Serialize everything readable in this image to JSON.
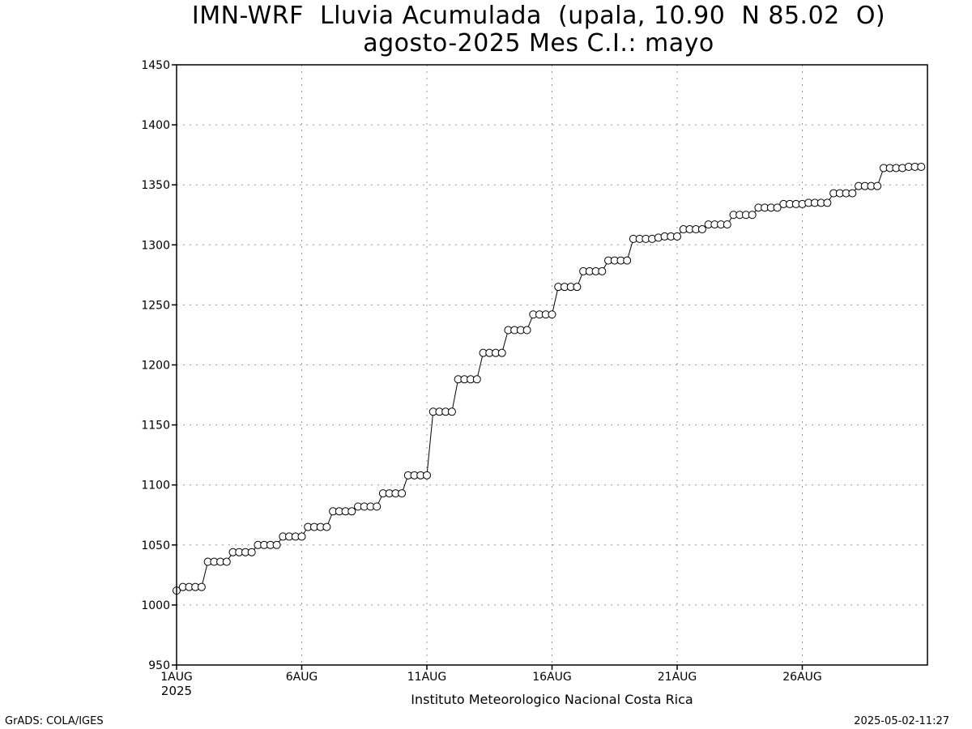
{
  "title_line1": "IMN-WRF  Lluvia Acumulada  (upala, 10.90  N 85.02  O)",
  "title_line2": "agosto-2025 Mes C.I.: mayo",
  "footer_left": "GrADS: COLA/IGES",
  "footer_right": "2025-05-02-11:27",
  "chart_data": {
    "type": "line",
    "title": "IMN-WRF  Lluvia Acumulada  (upala, 10.90  N 85.02  O)",
    "subtitle": "agosto-2025 Mes C.I.: mayo",
    "xlabel": "Instituto Meteorologico Nacional Costa Rica",
    "ylabel": "",
    "ylim": [
      950,
      1450
    ],
    "xlim": [
      0,
      30
    ],
    "x_unit": "days since 1AUG2025",
    "grid": true,
    "marker": "open-circle",
    "yticks": [
      950,
      1000,
      1050,
      1100,
      1150,
      1200,
      1250,
      1300,
      1350,
      1400,
      1450
    ],
    "xticks": [
      {
        "x": 0,
        "label": "1AUG",
        "sublabel": "2025"
      },
      {
        "x": 5,
        "label": "6AUG"
      },
      {
        "x": 10,
        "label": "11AUG"
      },
      {
        "x": 15,
        "label": "16AUG"
      },
      {
        "x": 20,
        "label": "21AUG"
      },
      {
        "x": 25,
        "label": "26AUG"
      }
    ],
    "step_hours": 6,
    "values": [
      1012,
      1015,
      1015,
      1015,
      1015,
      1036,
      1036,
      1036,
      1036,
      1044,
      1044,
      1044,
      1044,
      1050,
      1050,
      1050,
      1050,
      1057,
      1057,
      1057,
      1057,
      1065,
      1065,
      1065,
      1065,
      1078,
      1078,
      1078,
      1078,
      1082,
      1082,
      1082,
      1082,
      1093,
      1093,
      1093,
      1093,
      1108,
      1108,
      1108,
      1108,
      1161,
      1161,
      1161,
      1161,
      1188,
      1188,
      1188,
      1188,
      1210,
      1210,
      1210,
      1210,
      1229,
      1229,
      1229,
      1229,
      1242,
      1242,
      1242,
      1242,
      1265,
      1265,
      1265,
      1265,
      1278,
      1278,
      1278,
      1278,
      1287,
      1287,
      1287,
      1287,
      1305,
      1305,
      1305,
      1305,
      1306,
      1307,
      1307,
      1307,
      1313,
      1313,
      1313,
      1313,
      1317,
      1317,
      1317,
      1317,
      1325,
      1325,
      1325,
      1325,
      1331,
      1331,
      1331,
      1331,
      1334,
      1334,
      1334,
      1334,
      1335,
      1335,
      1335,
      1335,
      1343,
      1343,
      1343,
      1343,
      1349,
      1349,
      1349,
      1349,
      1364,
      1364,
      1364,
      1364,
      1365,
      1365,
      1365
    ]
  }
}
